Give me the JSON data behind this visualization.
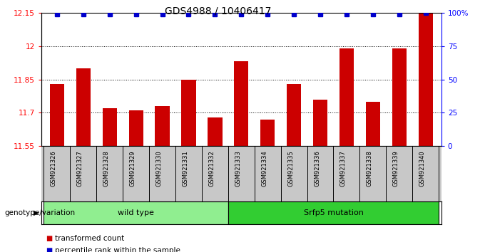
{
  "title": "GDS4988 / 10406417",
  "samples": [
    "GSM921326",
    "GSM921327",
    "GSM921328",
    "GSM921329",
    "GSM921330",
    "GSM921331",
    "GSM921332",
    "GSM921333",
    "GSM921334",
    "GSM921335",
    "GSM921336",
    "GSM921337",
    "GSM921338",
    "GSM921339",
    "GSM921340"
  ],
  "bar_values": [
    11.83,
    11.9,
    11.72,
    11.71,
    11.73,
    11.85,
    11.68,
    11.93,
    11.67,
    11.83,
    11.76,
    11.99,
    11.75,
    11.99,
    12.15
  ],
  "percentile_values": [
    99,
    99,
    99,
    99,
    99,
    99,
    99,
    99,
    99,
    99,
    99,
    99,
    99,
    99,
    100
  ],
  "bar_color": "#cc0000",
  "percentile_color": "#0000cc",
  "ylim_left": [
    11.55,
    12.15
  ],
  "yticks_left": [
    11.55,
    11.7,
    11.85,
    12.0,
    12.15
  ],
  "ytick_labels_left": [
    "11.55",
    "11.7",
    "11.85",
    "12",
    "12.15"
  ],
  "ylim_right": [
    0,
    100
  ],
  "yticks_right": [
    0,
    25,
    50,
    75,
    100
  ],
  "ytick_labels_right": [
    "0",
    "25",
    "50",
    "75",
    "100%"
  ],
  "wild_type_count": 7,
  "mutation_count": 8,
  "wild_type_label": "wild type",
  "mutation_label": "Srfp5 mutation",
  "genotype_label": "genotype/variation",
  "legend_bar_label": "transformed count",
  "legend_pct_label": "percentile rank within the sample",
  "light_green": "#90EE90",
  "medium_green": "#32CD32",
  "tick_area_color": "#c8c8c8",
  "background_color": "#ffffff"
}
